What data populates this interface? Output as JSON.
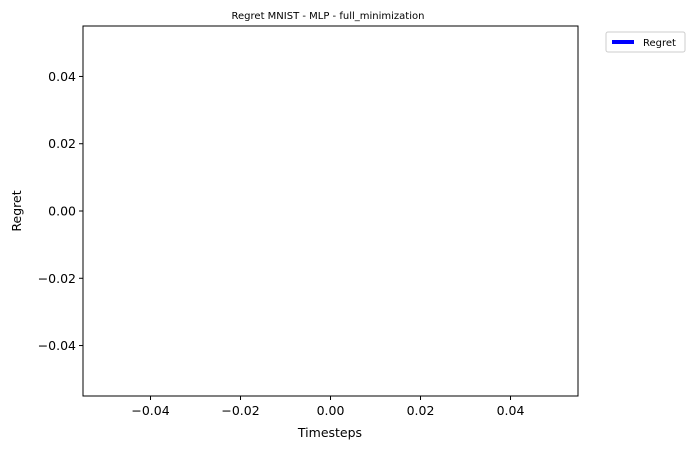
{
  "chart_data": {
    "type": "line",
    "title": "Regret MNIST - MLP - full_minimization",
    "xlabel": "Timesteps",
    "ylabel": "Regret",
    "xlim": [
      -0.055,
      0.055
    ],
    "ylim": [
      -0.055,
      0.055
    ],
    "xticks": [
      -0.04,
      -0.02,
      0.0,
      0.02,
      0.04
    ],
    "xtick_labels": [
      "−0.04",
      "−0.02",
      "0.00",
      "0.02",
      "0.04"
    ],
    "yticks": [
      0.04,
      0.02,
      0.0,
      -0.02,
      -0.04
    ],
    "ytick_labels": [
      "0.04",
      "0.02",
      "0.00",
      "−0.02",
      "−0.04"
    ],
    "grid": false,
    "legend_position": "outside-top-right",
    "series": [
      {
        "name": "Regret",
        "color": "#0000ff",
        "x": [],
        "y": []
      }
    ]
  }
}
